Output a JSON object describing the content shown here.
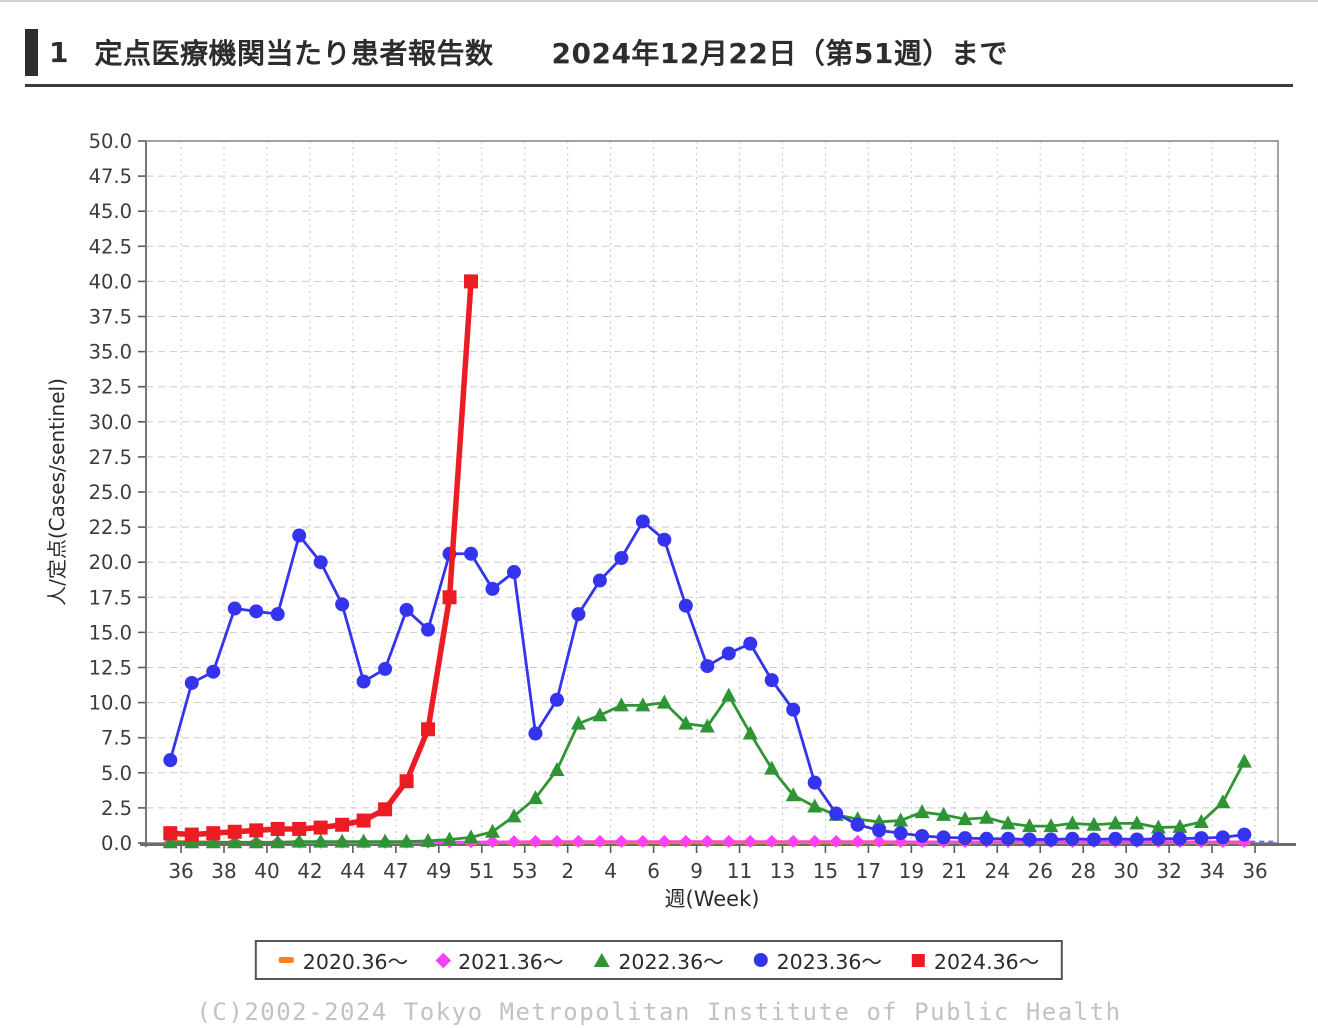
{
  "header": {
    "number": "1",
    "title": "定点医療機関当たり患者報告数",
    "date_note": "2024年12月22日（第51週）まで"
  },
  "chart_data": {
    "type": "line",
    "title": "",
    "xlabel": "週(Week)",
    "ylabel": "人/定点(Cases/sentinel)",
    "ylim": [
      0,
      50
    ],
    "ytick_step": 2.5,
    "grid": "dashed",
    "legend_position": "bottom",
    "x_tick_labels": [
      "36",
      "38",
      "40",
      "42",
      "44",
      "47",
      "49",
      "51",
      "53",
      "2",
      "4",
      "6",
      "9",
      "11",
      "13",
      "15",
      "17",
      "19",
      "21",
      "24",
      "26",
      "28",
      "30",
      "32",
      "34",
      "36"
    ],
    "categories": [
      "36",
      "37",
      "38",
      "39",
      "40",
      "41",
      "42",
      "43",
      "44",
      "45/46",
      "47",
      "48",
      "49",
      "50",
      "51",
      "52",
      "53",
      "1",
      "2",
      "3",
      "4",
      "5",
      "6",
      "7/8",
      "9",
      "10",
      "11",
      "12",
      "13",
      "14",
      "15",
      "16",
      "17",
      "18",
      "19",
      "20",
      "21",
      "22/23",
      "24",
      "25",
      "26",
      "27",
      "28",
      "29",
      "30",
      "31",
      "32",
      "33",
      "34",
      "35",
      "36"
    ],
    "series": [
      {
        "name": "2020.36～",
        "color": "#f5821f",
        "marker": "dash",
        "line_width": 2.4,
        "values": [
          0.15,
          0.1,
          0.08,
          0.05,
          0.05,
          0.04,
          0.03,
          0.03,
          0.03,
          0.02,
          0.02,
          0.02,
          0.02,
          0.02,
          0.02,
          0.02,
          0.02,
          0.02,
          0.02,
          0.02,
          0.02,
          0.02,
          0.02,
          0.02,
          0.02,
          0.02,
          0.02,
          0.02,
          0.02,
          0.02,
          0.02,
          0.02,
          0.02,
          0.02,
          0.02,
          0.02,
          0.02,
          0.02,
          0.02,
          0.02,
          0.02,
          0.02,
          0.02,
          0.02,
          0.02,
          0.02,
          0.02,
          0.02,
          0.02,
          0.02,
          0.02
        ]
      },
      {
        "name": "2021.36～",
        "color": "#fb40fb",
        "marker": "diamond",
        "line_width": 2.2,
        "values": [
          0.05,
          0.05,
          0.05,
          0.05,
          0.05,
          0.05,
          0.05,
          0.05,
          0.05,
          0.05,
          0.05,
          0.05,
          0.05,
          0.08,
          0.08,
          0.1,
          0.1,
          0.12,
          0.12,
          0.12,
          0.12,
          0.12,
          0.12,
          0.12,
          0.12,
          0.12,
          0.12,
          0.12,
          0.12,
          0.12,
          0.12,
          0.12,
          0.12,
          0.12,
          0.1,
          0.1,
          0.1,
          0.1,
          0.1,
          0.1,
          0.1,
          0.1,
          0.1,
          0.1,
          0.1,
          0.1,
          0.1,
          0.1,
          0.1,
          0.1,
          0.1
        ]
      },
      {
        "name": "2022.36～",
        "color": "#2e9434",
        "marker": "triangle",
        "line_width": 2.8,
        "values": [
          0.05,
          0.05,
          0.05,
          0.05,
          0.05,
          0.05,
          0.1,
          0.1,
          0.1,
          0.1,
          0.1,
          0.1,
          0.15,
          0.25,
          0.4,
          0.8,
          1.9,
          3.2,
          5.2,
          8.5,
          9.1,
          9.8,
          9.8,
          10.0,
          8.5,
          8.3,
          10.5,
          7.8,
          5.3,
          3.4,
          2.6,
          2.0,
          1.7,
          1.5,
          1.6,
          2.2,
          2.0,
          1.7,
          1.8,
          1.4,
          1.2,
          1.2,
          1.4,
          1.3,
          1.4,
          1.4,
          1.1,
          1.15,
          1.5,
          2.9,
          5.8
        ]
      },
      {
        "name": "2023.36～",
        "color": "#3434ee",
        "marker": "circle",
        "line_width": 2.8,
        "values": [
          5.9,
          11.4,
          12.2,
          16.7,
          16.5,
          16.3,
          21.9,
          20.0,
          17.0,
          11.5,
          12.4,
          16.6,
          15.2,
          20.6,
          20.6,
          18.1,
          19.3,
          7.8,
          10.2,
          16.3,
          18.7,
          20.3,
          22.9,
          21.6,
          16.9,
          12.6,
          13.5,
          14.2,
          11.6,
          9.5,
          4.3,
          2.1,
          1.3,
          0.9,
          0.7,
          0.5,
          0.4,
          0.35,
          0.3,
          0.3,
          0.25,
          0.25,
          0.3,
          0.25,
          0.3,
          0.25,
          0.3,
          0.3,
          0.35,
          0.4,
          0.6
        ]
      },
      {
        "name": "2024.36～",
        "color": "#ec1c24",
        "marker": "square",
        "line_width": 5.5,
        "values": [
          0.7,
          0.6,
          0.7,
          0.8,
          0.9,
          1.0,
          1.0,
          1.1,
          1.3,
          1.6,
          2.4,
          4.4,
          8.1,
          17.5,
          40.0
        ]
      }
    ]
  },
  "footer": {
    "copyright": "(C)2002-2024 Tokyo Metropolitan Institute of Public Health"
  }
}
